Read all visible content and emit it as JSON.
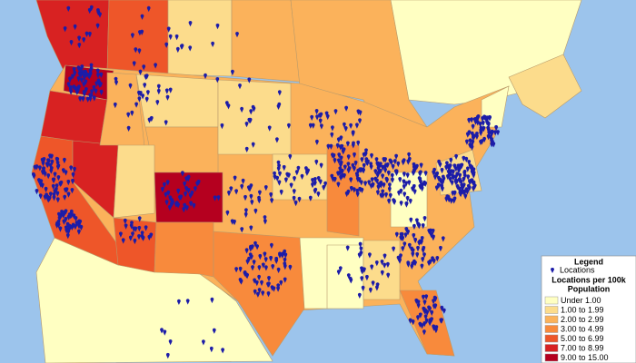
{
  "legend": {
    "title": "Legend",
    "point_label": "Locations",
    "heading": "Locations per 100k",
    "subheading": "Population",
    "classes": [
      {
        "label": "Under 1.00",
        "color": "#ffffc2"
      },
      {
        "label": "1.00 to 1.99",
        "color": "#fcdc8c"
      },
      {
        "label": "2.00 to 2.99",
        "color": "#fbb25b"
      },
      {
        "label": "3.00 to 4.99",
        "color": "#f88a3c"
      },
      {
        "label": "5.00 to 6.99",
        "color": "#ee5629"
      },
      {
        "label": "7.00 to 8.99",
        "color": "#d82222"
      },
      {
        "label": "9.00 to 15.00",
        "color": "#b5001f"
      }
    ]
  }
}
